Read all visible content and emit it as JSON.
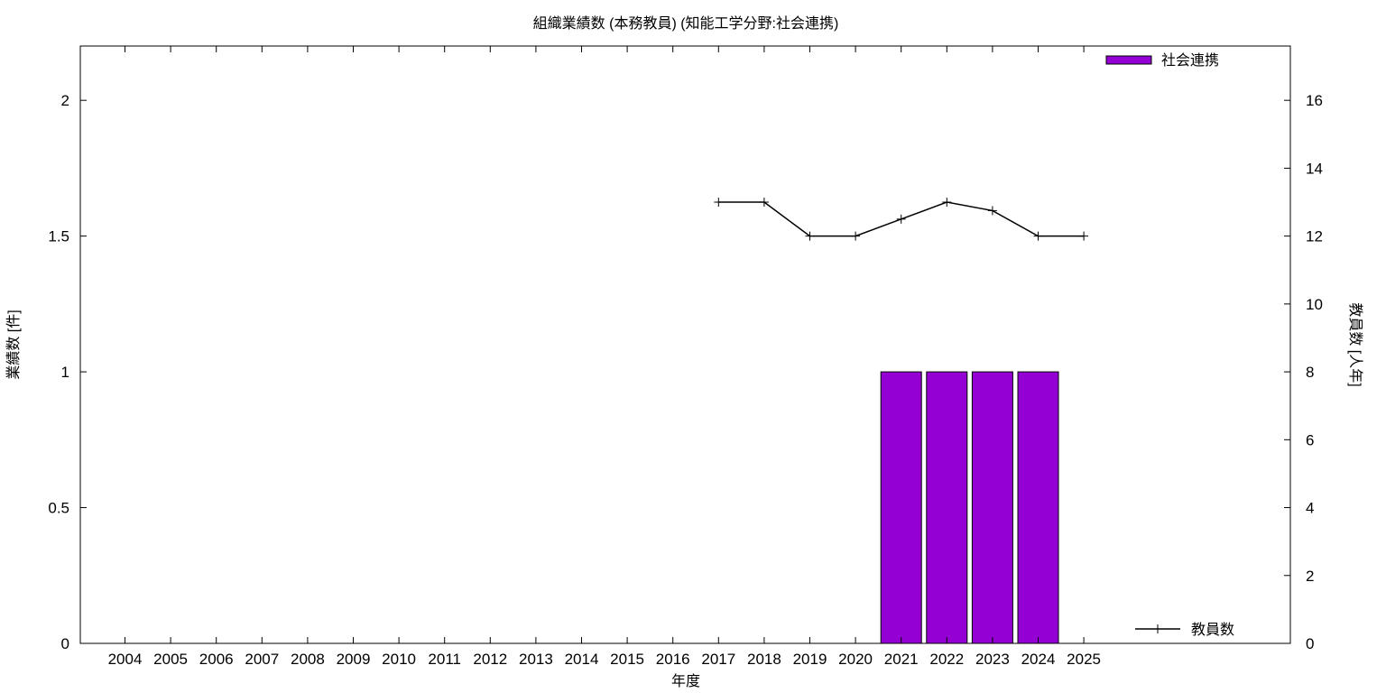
{
  "chart_data": {
    "type": "bar",
    "title": "組織業績数 (本務教員) (知能工学分野:社会連携)",
    "xlabel": "年度",
    "ylabel": "業績数 [件]",
    "y2label": "教員数 [人年]",
    "categories": [
      "2004",
      "2005",
      "2006",
      "2007",
      "2008",
      "2009",
      "2010",
      "2011",
      "2012",
      "2013",
      "2014",
      "2015",
      "2016",
      "2017",
      "2018",
      "2019",
      "2020",
      "2021",
      "2022",
      "2023",
      "2024",
      "2025"
    ],
    "ylim": [
      0,
      2.2
    ],
    "y2lim": [
      0,
      17.6
    ],
    "yticks": [
      "0",
      "0.5",
      "1",
      "1.5",
      "2"
    ],
    "y2ticks": [
      "0",
      "2",
      "4",
      "6",
      "8",
      "10",
      "12",
      "14",
      "16"
    ],
    "grid": false,
    "series": [
      {
        "name": "社会連携",
        "kind": "bar",
        "axis": "left",
        "color": "#9400d3",
        "values": [
          0,
          0,
          0,
          0,
          0,
          0,
          0,
          0,
          0,
          0,
          0,
          0,
          0,
          0,
          0,
          0,
          0,
          1,
          1,
          1,
          1,
          0
        ]
      },
      {
        "name": "教員数",
        "kind": "line",
        "axis": "right",
        "color": "#000000",
        "marker": "plus",
        "x": [
          "2017",
          "2018",
          "2019",
          "2020",
          "2021",
          "2022",
          "2023",
          "2024",
          "2025"
        ],
        "values": [
          13,
          13,
          12,
          12,
          12.5,
          13,
          12.75,
          12,
          12
        ]
      }
    ],
    "legend": [
      {
        "label": "社会連携",
        "position": "top-right"
      },
      {
        "label": "教員数",
        "position": "bottom-right"
      }
    ]
  }
}
